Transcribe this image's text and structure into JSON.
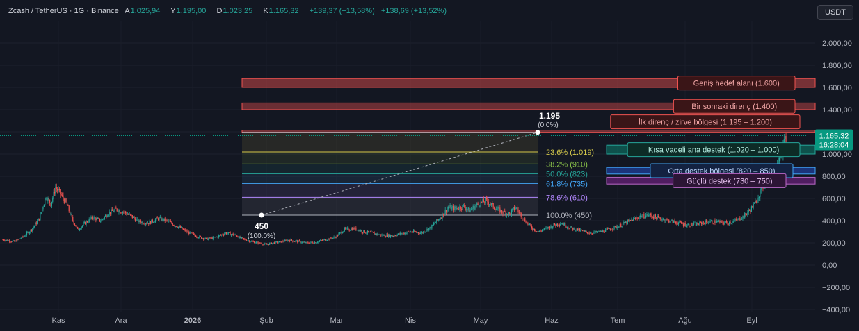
{
  "header": {
    "symbol": "Zcash / TetherUS · 1G · Binance",
    "open_label": "A",
    "open": "1.025,94",
    "high_label": "Y",
    "high": "1.195,00",
    "low_label": "D",
    "low": "1.023,25",
    "close_label": "K",
    "close": "1.165,32",
    "change": "+139,37 (+13,58%)",
    "change2": "+138,69 (+13,52%)"
  },
  "currency_button": "USDT",
  "price_tag": {
    "value": "1.165,32",
    "countdown": "16:28:04",
    "color": "#089981"
  },
  "chart_data": {
    "type": "candlestick",
    "ylim": [
      -450,
      2150
    ],
    "y_ticks": [
      {
        "v": 2000,
        "label": "2.000,00"
      },
      {
        "v": 1800,
        "label": "1.800,00"
      },
      {
        "v": 1600,
        "label": "1.600,00"
      },
      {
        "v": 1400,
        "label": "1.400,00"
      },
      {
        "v": 1200,
        "label": "1.200,00"
      },
      {
        "v": 1000,
        "label": "1.000,00"
      },
      {
        "v": 800,
        "label": "800,00"
      },
      {
        "v": 600,
        "label": "600,00"
      },
      {
        "v": 400,
        "label": "400,00"
      },
      {
        "v": 200,
        "label": "200,00"
      },
      {
        "v": 0,
        "label": "0,00"
      },
      {
        "v": -200,
        "label": "−200,00"
      },
      {
        "v": -400,
        "label": "−400,00"
      }
    ],
    "x_ticks": [
      {
        "label": "Kas",
        "bold": false
      },
      {
        "label": "Ara",
        "bold": false
      },
      {
        "label": "2026",
        "bold": true
      },
      {
        "label": "Şub",
        "bold": false
      },
      {
        "label": "Mar",
        "bold": false
      },
      {
        "label": "Nis",
        "bold": false
      },
      {
        "label": "May",
        "bold": false
      },
      {
        "label": "Haz",
        "bold": false
      },
      {
        "label": "Tem",
        "bold": false
      },
      {
        "label": "Ağu",
        "bold": false
      },
      {
        "label": "Eyl",
        "bold": false
      }
    ],
    "price_path": [
      [
        0,
        230
      ],
      [
        12,
        210
      ],
      [
        22,
        260
      ],
      [
        30,
        320
      ],
      [
        38,
        420
      ],
      [
        45,
        620
      ],
      [
        50,
        550
      ],
      [
        55,
        700
      ],
      [
        60,
        640
      ],
      [
        66,
        560
      ],
      [
        72,
        420
      ],
      [
        78,
        320
      ],
      [
        86,
        380
      ],
      [
        94,
        430
      ],
      [
        102,
        400
      ],
      [
        110,
        470
      ],
      [
        118,
        500
      ],
      [
        126,
        480
      ],
      [
        134,
        440
      ],
      [
        142,
        390
      ],
      [
        152,
        380
      ],
      [
        162,
        420
      ],
      [
        172,
        395
      ],
      [
        182,
        350
      ],
      [
        192,
        300
      ],
      [
        202,
        260
      ],
      [
        212,
        235
      ],
      [
        222,
        250
      ],
      [
        232,
        290
      ],
      [
        242,
        270
      ],
      [
        250,
        235
      ],
      [
        258,
        215
      ],
      [
        266,
        200
      ],
      [
        274,
        185
      ],
      [
        282,
        200
      ],
      [
        290,
        210
      ],
      [
        298,
        225
      ],
      [
        306,
        215
      ],
      [
        316,
        200
      ],
      [
        326,
        205
      ],
      [
        336,
        230
      ],
      [
        346,
        250
      ],
      [
        356,
        320
      ],
      [
        366,
        330
      ],
      [
        376,
        300
      ],
      [
        386,
        285
      ],
      [
        396,
        270
      ],
      [
        406,
        265
      ],
      [
        416,
        285
      ],
      [
        426,
        300
      ],
      [
        436,
        290
      ],
      [
        446,
        340
      ],
      [
        456,
        430
      ],
      [
        464,
        520
      ],
      [
        472,
        510
      ],
      [
        480,
        530
      ],
      [
        486,
        490
      ],
      [
        492,
        530
      ],
      [
        498,
        560
      ],
      [
        504,
        580
      ],
      [
        512,
        520
      ],
      [
        520,
        480
      ],
      [
        528,
        460
      ],
      [
        534,
        520
      ],
      [
        540,
        450
      ],
      [
        546,
        380
      ],
      [
        552,
        330
      ],
      [
        558,
        300
      ],
      [
        566,
        330
      ],
      [
        574,
        360
      ],
      [
        582,
        380
      ],
      [
        590,
        340
      ],
      [
        598,
        320
      ],
      [
        606,
        300
      ],
      [
        614,
        290
      ],
      [
        624,
        300
      ],
      [
        634,
        330
      ],
      [
        644,
        360
      ],
      [
        654,
        400
      ],
      [
        664,
        440
      ],
      [
        674,
        450
      ],
      [
        684,
        420
      ],
      [
        694,
        400
      ],
      [
        704,
        380
      ],
      [
        714,
        360
      ],
      [
        724,
        370
      ],
      [
        734,
        390
      ],
      [
        744,
        390
      ],
      [
        754,
        380
      ],
      [
        764,
        400
      ],
      [
        772,
        440
      ],
      [
        778,
        490
      ],
      [
        784,
        560
      ],
      [
        790,
        680
      ],
      [
        796,
        760
      ],
      [
        802,
        780
      ],
      [
        808,
        980
      ],
      [
        812,
        1030
      ],
      [
        816,
        1165
      ]
    ],
    "fib_high": {
      "value": 1195,
      "label": "1.195",
      "pct": "(0.0%)"
    },
    "fib_low": {
      "value": 450,
      "label": "450",
      "pct": "(100.0%)"
    },
    "fib_levels": [
      {
        "value": 1195,
        "label": "",
        "color": "#b2b5be"
      },
      {
        "value": 1019,
        "label": "23.6% (1.019)",
        "color": "#d4c84a"
      },
      {
        "value": 910,
        "label": "38.2% (910)",
        "color": "#8bc34a"
      },
      {
        "value": 823,
        "label": "50.0% (823)",
        "color": "#26a69a"
      },
      {
        "value": 735,
        "label": "61.8% (735)",
        "color": "#42a5f5"
      },
      {
        "value": 610,
        "label": "78.6% (610)",
        "color": "#b388ff"
      },
      {
        "value": 450,
        "label": "100.0% (450)",
        "color": "#b2b5be"
      }
    ],
    "zones": [
      {
        "from": 1600,
        "to": 1680,
        "label": "Geniş hedef alanı (1.600)",
        "fill": "rgba(239,83,80,0.45)",
        "border": "#ef5350",
        "text": "#f2a6a6",
        "label_bg": "#3a1517"
      },
      {
        "from": 1400,
        "to": 1460,
        "label": "Bir sonraki direnç (1.400)",
        "fill": "rgba(239,83,80,0.40)",
        "border": "#ef5350",
        "text": "#f2a6a6",
        "label_bg": "#3a1517"
      },
      {
        "from": 1195,
        "to": 1215,
        "label": "İlk direnç / zirve bölgesi (1.195 – 1.200)",
        "fill": "rgba(239,83,80,0.40)",
        "border": "#ef5350",
        "text": "#f2a6a6",
        "label_bg": "#3a1517"
      },
      {
        "from": 1000,
        "to": 1080,
        "label": "Kısa vadeli ana destek (1.020 – 1.000)",
        "fill": "rgba(8,153,129,0.45)",
        "border": "#26a69a",
        "text": "#b4ece0",
        "label_bg": "#0d2b26"
      },
      {
        "from": 820,
        "to": 880,
        "label": "Orta destek bölgesi (820 – 850)",
        "fill": "rgba(41,98,255,0.40)",
        "border": "#42a5f5",
        "text": "#bcd6ff",
        "label_bg": "#132241"
      },
      {
        "from": 730,
        "to": 790,
        "label": "Güçlü destek (730 – 750)",
        "fill": "rgba(156,39,176,0.45)",
        "border": "#ba68c8",
        "text": "#e7c2f0",
        "label_bg": "#2c1535"
      }
    ]
  }
}
